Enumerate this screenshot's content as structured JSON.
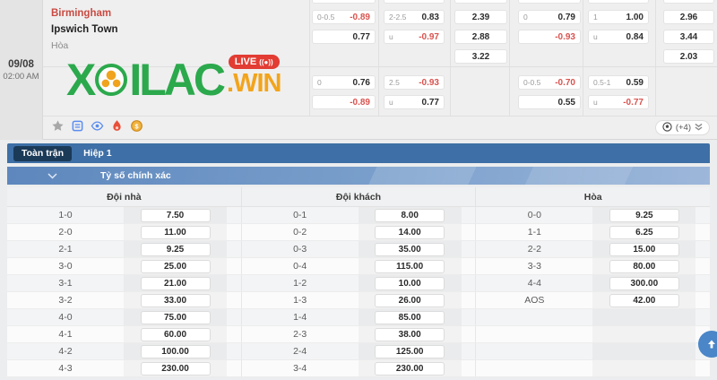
{
  "match": {
    "date": "09/08",
    "time": "02:00 AM",
    "home": "Birmingham",
    "away": "Ipswich Town",
    "draw_label": "Hòa"
  },
  "logo": {
    "part_x": "X",
    "part_ilac": "ILAC",
    "suffix": ".WIN",
    "live_label": "LIVE",
    "live_rec": "((●))",
    "green": "#2ba94c",
    "orange": "#f2a41c",
    "badge_red": "#e23c33"
  },
  "odds": {
    "blocks": [
      {
        "columns": [
          [
            {
              "l": "0-0.5",
              "v": "-0.89"
            },
            {
              "l": "",
              "v": "0.77"
            }
          ],
          [
            {
              "l": "2-2.5",
              "v": "0.83"
            },
            {
              "l": "u",
              "v": "-0.97"
            }
          ],
          [
            {
              "v": "2.39"
            },
            {
              "v": "2.88"
            },
            {
              "v": "3.22"
            }
          ],
          [
            {
              "l": "0",
              "v": "0.79"
            },
            {
              "l": "",
              "v": "-0.93"
            }
          ],
          [
            {
              "l": "1",
              "v": "1.00"
            },
            {
              "l": "u",
              "v": "0.84"
            }
          ],
          [
            {
              "v": "2.96"
            },
            {
              "v": "3.44"
            },
            {
              "v": "2.03"
            }
          ]
        ]
      },
      {
        "columns": [
          [
            {
              "l": "0",
              "v": "0.76"
            },
            {
              "l": "",
              "v": "-0.89"
            }
          ],
          [
            {
              "l": "2.5",
              "v": "-0.93"
            },
            {
              "l": "u",
              "v": "0.77"
            }
          ],
          [],
          [
            {
              "l": "0-0.5",
              "v": "-0.70"
            },
            {
              "l": "",
              "v": "0.55"
            }
          ],
          [
            {
              "l": "0.5-1",
              "v": "0.59"
            },
            {
              "l": "u",
              "v": "-0.77"
            }
          ],
          []
        ]
      }
    ],
    "more_label": "(+4)",
    "negative_color": "#d9534f",
    "value_color": "#2d2d2d"
  },
  "tabs": [
    {
      "label": "Toàn trận",
      "active": true
    },
    {
      "label": "Hiệp 1",
      "active": false
    }
  ],
  "section": {
    "title": "Tỷ số chính xác"
  },
  "score_table": {
    "groups": [
      {
        "header": "Đội nhà",
        "rows": [
          [
            "1-0",
            "7.50"
          ],
          [
            "2-0",
            "11.00"
          ],
          [
            "2-1",
            "9.25"
          ],
          [
            "3-0",
            "25.00"
          ],
          [
            "3-1",
            "21.00"
          ],
          [
            "3-2",
            "33.00"
          ],
          [
            "4-0",
            "75.00"
          ],
          [
            "4-1",
            "60.00"
          ],
          [
            "4-2",
            "100.00"
          ],
          [
            "4-3",
            "230.00"
          ]
        ]
      },
      {
        "header": "Đội khách",
        "rows": [
          [
            "0-1",
            "8.00"
          ],
          [
            "0-2",
            "14.00"
          ],
          [
            "0-3",
            "35.00"
          ],
          [
            "0-4",
            "115.00"
          ],
          [
            "1-2",
            "10.00"
          ],
          [
            "1-3",
            "26.00"
          ],
          [
            "1-4",
            "85.00"
          ],
          [
            "2-3",
            "38.00"
          ],
          [
            "2-4",
            "125.00"
          ],
          [
            "3-4",
            "230.00"
          ]
        ]
      },
      {
        "header": "Hòa",
        "rows": [
          [
            "0-0",
            "9.25"
          ],
          [
            "1-1",
            "6.25"
          ],
          [
            "2-2",
            "15.00"
          ],
          [
            "3-3",
            "80.00"
          ],
          [
            "4-4",
            "300.00"
          ],
          [
            "AOS",
            "42.00"
          ]
        ]
      }
    ]
  },
  "colors": {
    "tabbar_blue": "#3e6fa6",
    "active_tab_navy": "#1b3a58",
    "section_header_blue": "#5d87bd",
    "fab_blue": "#4a86c8",
    "team_home_red": "#c94a42"
  }
}
